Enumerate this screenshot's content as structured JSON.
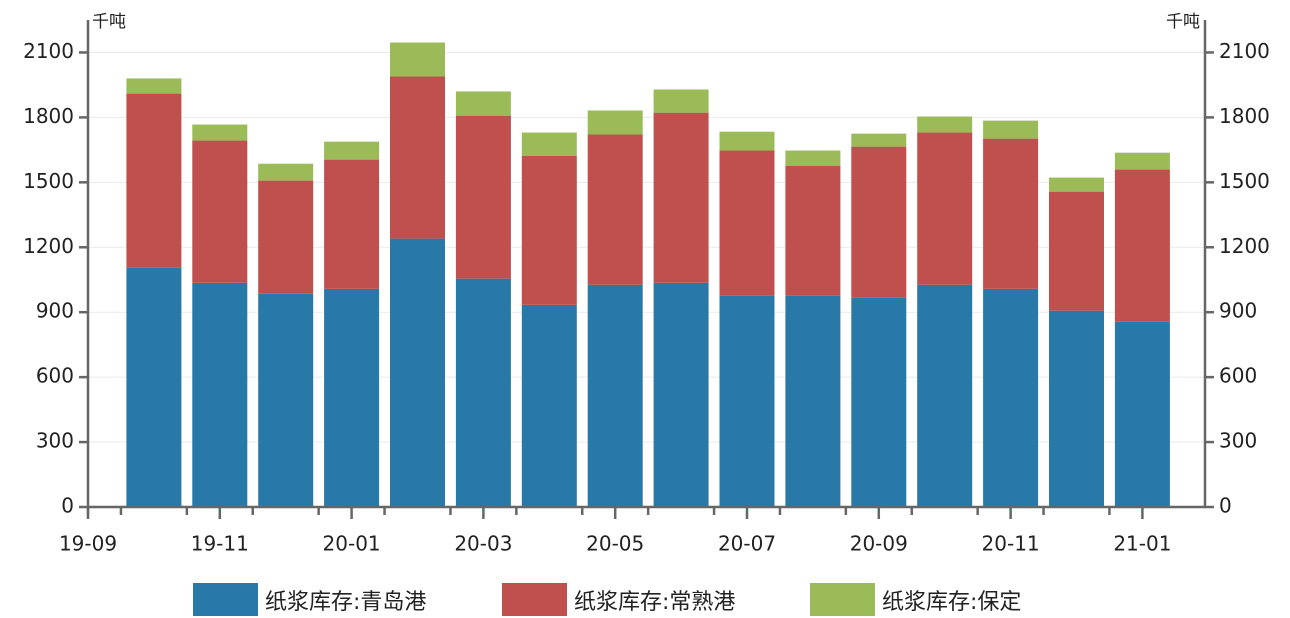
{
  "chart_data": {
    "type": "stacked-bar",
    "y_unit": "千吨",
    "y2_unit": "千吨",
    "categories": [
      "19-09",
      null,
      "19-11",
      null,
      "20-01",
      null,
      "20-03",
      null,
      "20-05",
      null,
      "20-07",
      null,
      "20-09",
      null,
      "20-11",
      null,
      "21-01"
    ],
    "series": [
      {
        "name": "纸浆库存:青岛港",
        "color": "#2878a8",
        "values": [
          null,
          1105,
          1036,
          985,
          1008,
          1240,
          1055,
          934,
          1027,
          1036,
          976,
          976,
          967,
          1027,
          1008,
          907,
          856
        ]
      },
      {
        "name": "纸浆库存:常熟港",
        "color": "#c0504d",
        "values": [
          null,
          805,
          657,
          523,
          597,
          749,
          753,
          689,
          694,
          786,
          671,
          601,
          698,
          703,
          694,
          550,
          703
        ]
      },
      {
        "name": "纸浆库存:保定",
        "color": "#9bbb59",
        "values": [
          null,
          70,
          74,
          78,
          83,
          157,
          112,
          107,
          111,
          107,
          87,
          70,
          60,
          74,
          83,
          65,
          78
        ]
      }
    ],
    "ylim": [
      0,
      2250
    ],
    "yticks": [
      0,
      300,
      600,
      900,
      1200,
      1500,
      1800,
      2100
    ],
    "y2lim": [
      0,
      2250
    ],
    "y2ticks": [
      0,
      300,
      600,
      900,
      1200,
      1500,
      1800,
      2100
    ],
    "grid": true,
    "legend": "bottom"
  }
}
